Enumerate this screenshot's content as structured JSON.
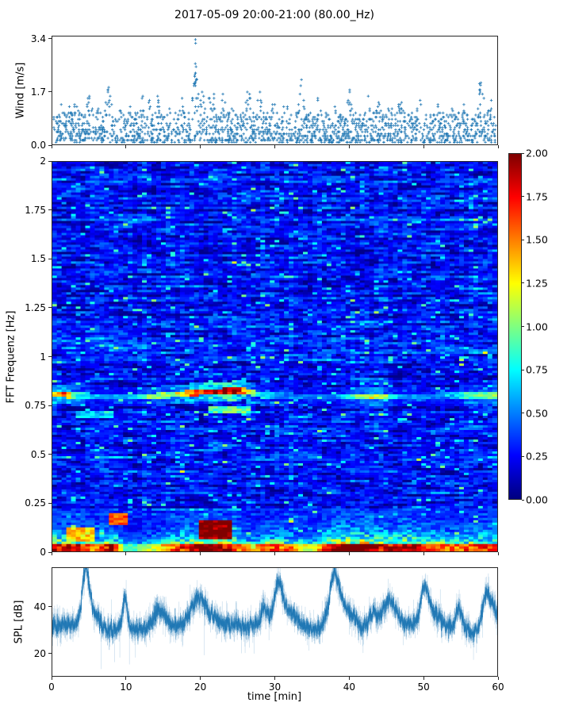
{
  "figure": {
    "title": "2017-05-09 20:00-21:00 (80.00_Hz)",
    "background": "#ffffff",
    "frame_color": "#262626",
    "text_color": "#000000",
    "accent_blue": "#1f77b4"
  },
  "chart_data": [
    {
      "id": "wind",
      "type": "scatter",
      "ylabel": "Wind [m/s]",
      "marker": "+",
      "marker_color": "#1f77b4",
      "xlim": [
        0,
        60
      ],
      "ylim": [
        0,
        3.5
      ],
      "ytick_values": [
        0,
        1.7,
        3.4
      ],
      "ytick_labels": [
        "0.0",
        "1.7",
        "3.4"
      ],
      "xtick_values": [
        0,
        10,
        20,
        30,
        40,
        50,
        60
      ],
      "n_points": 1900,
      "seed": 2017,
      "y_quantum": 0.068,
      "t_quantum": 0.1,
      "base_max": 0.95,
      "gust_sigma": 0.45,
      "gust_peaks": [
        [
          1.2,
          1.25
        ],
        [
          2.2,
          1.35
        ],
        [
          3.2,
          1.45
        ],
        [
          5,
          1.55
        ],
        [
          6.2,
          1.3
        ],
        [
          7.6,
          1.85
        ],
        [
          9,
          1.3
        ],
        [
          10.5,
          1.2
        ],
        [
          12,
          1.75
        ],
        [
          13,
          1.45
        ],
        [
          14.2,
          1.55
        ],
        [
          16,
          1.35
        ],
        [
          17.5,
          1.5
        ],
        [
          19.3,
          2.3
        ],
        [
          20.2,
          1.8
        ],
        [
          21.5,
          1.95
        ],
        [
          23,
          1.75
        ],
        [
          24.5,
          1.35
        ],
        [
          26.5,
          1.9
        ],
        [
          28,
          1.75
        ],
        [
          30,
          1.65
        ],
        [
          31.5,
          1.45
        ],
        [
          33.6,
          1.95
        ],
        [
          36,
          1.6
        ],
        [
          38,
          1.35
        ],
        [
          40,
          1.8
        ],
        [
          42.5,
          1.55
        ],
        [
          44,
          1.35
        ],
        [
          45.5,
          1.3
        ],
        [
          47,
          1.65
        ],
        [
          49.5,
          1.45
        ],
        [
          52,
          1.35
        ],
        [
          54,
          1.2
        ],
        [
          55.5,
          1.25
        ],
        [
          57.8,
          2.05
        ],
        [
          59,
          1.5
        ]
      ],
      "outliers": [
        [
          19.3,
          3.4
        ],
        [
          19.32,
          3.28
        ],
        [
          19.28,
          2.62
        ],
        [
          19.38,
          2.52
        ],
        [
          19.2,
          2.2
        ],
        [
          19.45,
          2.1
        ],
        [
          19.3,
          2.0
        ],
        [
          33.6,
          2.1
        ],
        [
          57.8,
          2.0
        ],
        [
          57.75,
          1.92
        ],
        [
          7.6,
          1.85
        ]
      ]
    },
    {
      "id": "spectrogram",
      "type": "heatmap",
      "ylabel": "FFT Frequenz [Hz]",
      "colormap": "jet",
      "clim": [
        0,
        2
      ],
      "xlim": [
        0,
        60
      ],
      "ylim": [
        0,
        2
      ],
      "ytick_values": [
        0,
        0.25,
        0.5,
        0.75,
        1,
        1.25,
        1.5,
        1.75,
        2
      ],
      "ytick_labels": [
        "0",
        "0.25",
        "0.5",
        "0.75",
        "1",
        "1.25",
        "1.5",
        "1.75",
        "2"
      ],
      "xtick_values": [
        0,
        10,
        20,
        30,
        40,
        50,
        60
      ],
      "seed": 1337,
      "grid_rows": 164,
      "grid_cols": 94,
      "base_level": 0.27,
      "row_bias_sd": 0.05,
      "col_bias_sd": 0.028,
      "noise_sd": 0.11,
      "ar_coeff": 0.55,
      "speckle_bright_p": 0.045,
      "speckle_dark_p": 0.05,
      "wave_band_center": [
        [
          0,
          0.805
        ],
        [
          8,
          0.79
        ],
        [
          14,
          0.795
        ],
        [
          20,
          0.815
        ],
        [
          26,
          0.825
        ],
        [
          28,
          0.8
        ],
        [
          40,
          0.79
        ],
        [
          50,
          0.795
        ],
        [
          60,
          0.8
        ]
      ],
      "wave_band_amp": [
        [
          0,
          1.5
        ],
        [
          2,
          1.7
        ],
        [
          3,
          0.9
        ],
        [
          6,
          0.6
        ],
        [
          10,
          0.6
        ],
        [
          13,
          1.0
        ],
        [
          16,
          1.1
        ],
        [
          18,
          1.5
        ],
        [
          20,
          1.8
        ],
        [
          23,
          2.0
        ],
        [
          25,
          2.0
        ],
        [
          26,
          1.4
        ],
        [
          28,
          0.8
        ],
        [
          31,
          0.5
        ],
        [
          38,
          0.5
        ],
        [
          41,
          1.0
        ],
        [
          43,
          1.3
        ],
        [
          45,
          1.1
        ],
        [
          47,
          0.6
        ],
        [
          53,
          0.5
        ],
        [
          56,
          0.9
        ],
        [
          58,
          1.0
        ],
        [
          60,
          1.1
        ]
      ],
      "secondary_bands": [
        [
          3,
          8.5,
          0.7,
          0.5,
          0.3
        ],
        [
          21,
          27,
          0.73,
          0.7,
          0.4
        ]
      ],
      "low_band_freq": 0.22,
      "low_band_amp": [
        [
          0,
          1.05
        ],
        [
          4,
          1.0
        ],
        [
          6,
          0.8
        ],
        [
          8,
          1.1
        ],
        [
          10,
          0.45
        ],
        [
          12,
          0.55
        ],
        [
          14,
          0.7
        ],
        [
          18,
          1.0
        ],
        [
          21,
          1.25
        ],
        [
          24,
          1.0
        ],
        [
          27,
          0.7
        ],
        [
          29,
          0.95
        ],
        [
          32,
          0.85
        ],
        [
          35,
          0.6
        ],
        [
          38,
          1.15
        ],
        [
          42,
          1.2
        ],
        [
          45,
          1.0
        ],
        [
          48,
          1.1
        ],
        [
          51,
          0.95
        ],
        [
          54,
          0.85
        ],
        [
          57,
          0.95
        ],
        [
          60,
          1.0
        ]
      ],
      "hot_patches": [
        [
          19.5,
          24.5,
          0.06,
          0.16,
          1.8,
          0.4
        ],
        [
          7.5,
          10,
          0.14,
          0.2,
          1.45,
          0.3
        ],
        [
          2,
          6,
          0.05,
          0.12,
          1.1,
          0.4
        ]
      ],
      "colorbar": {
        "tick_values": [
          0,
          0.25,
          0.5,
          0.75,
          1,
          1.25,
          1.5,
          1.75,
          2
        ],
        "tick_labels": [
          "0.00",
          "0.25",
          "0.50",
          "0.75",
          "1.00",
          "1.25",
          "1.50",
          "1.75",
          "2.00"
        ]
      }
    },
    {
      "id": "spl",
      "type": "line",
      "ylabel": "SPL [dB]",
      "xlabel": "time [min]",
      "line_color": "#1f77b4",
      "xlim": [
        0,
        60
      ],
      "ylim": [
        10,
        57
      ],
      "ytick_values": [
        20,
        40
      ],
      "ytick_labels": [
        "20",
        "40"
      ],
      "xtick_values": [
        0,
        10,
        20,
        30,
        40,
        50,
        60
      ],
      "xtick_labels": [
        "0",
        "10",
        "20",
        "30",
        "40",
        "50",
        "60"
      ],
      "seed": 509,
      "n_samples": 2200,
      "base_level": 32,
      "noise_sd": 1.7,
      "peaks": [
        [
          4.5,
          20,
          0.45
        ],
        [
          5.4,
          7,
          1.1
        ],
        [
          9.8,
          12,
          0.3
        ],
        [
          14.5,
          7,
          0.7
        ],
        [
          19.5,
          10,
          0.9
        ],
        [
          21,
          4,
          1.2
        ],
        [
          28.6,
          7,
          0.5
        ],
        [
          30.5,
          17,
          0.55
        ],
        [
          32,
          6,
          1.3
        ],
        [
          38,
          19,
          0.65
        ],
        [
          39.5,
          7,
          1.3
        ],
        [
          43.2,
          6,
          0.5
        ],
        [
          45.5,
          11,
          0.9
        ],
        [
          50.2,
          14,
          0.55
        ],
        [
          51.5,
          5,
          1.2
        ],
        [
          54.8,
          8,
          0.35
        ],
        [
          58.5,
          11,
          0.5
        ],
        [
          59.5,
          6,
          0.8
        ]
      ],
      "dips": [
        [
          7.2,
          -3,
          1.2
        ],
        [
          11.5,
          -2,
          0.8
        ],
        [
          34.8,
          -2,
          1.8
        ],
        [
          41.8,
          -2.5,
          0.8
        ],
        [
          53,
          -2,
          0.8
        ],
        [
          56.8,
          -3,
          0.7
        ]
      ],
      "down_spikes": [
        [
          6.6,
          13
        ],
        [
          8.4,
          16
        ],
        [
          9.1,
          18
        ],
        [
          10.4,
          15
        ],
        [
          11.2,
          18
        ],
        [
          20.5,
          19
        ],
        [
          26,
          20
        ],
        [
          41.9,
          20
        ],
        [
          56.8,
          17
        ],
        [
          57.2,
          20
        ]
      ]
    }
  ]
}
